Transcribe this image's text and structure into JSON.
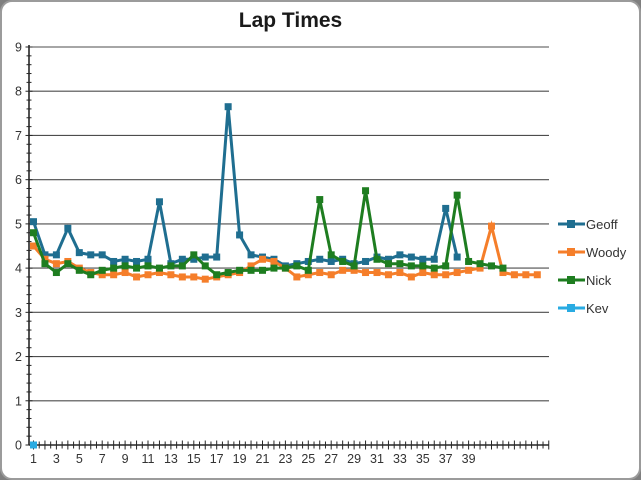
{
  "frame": {
    "outer_background": "#7f7f7f",
    "card_background": "#ffffff",
    "card_border": "#9b9b9b"
  },
  "chart_data": {
    "type": "line",
    "title": "Lap Times",
    "xlabel": "",
    "ylabel": "",
    "legend_position": "right",
    "grid": "horizontal-major",
    "marker": "square",
    "colors": {
      "axis": "#262626",
      "grid": "#4d4d4d",
      "tick_text": "#333333"
    },
    "axes": {
      "x": {
        "min": 1,
        "max": 46,
        "minor_tick_step": 0.5,
        "label_start": 1,
        "label_step": 2,
        "tick_labels": [
          "1",
          "3",
          "5",
          "7",
          "9",
          "11",
          "13",
          "15",
          "17",
          "19",
          "21",
          "23",
          "25",
          "27",
          "29",
          "31",
          "33",
          "35",
          "37",
          "39"
        ]
      },
      "y": {
        "min": 0,
        "max": 9,
        "minor_tick_step": 0.2,
        "major_step": 1,
        "tick_labels": [
          "0",
          "1",
          "2",
          "3",
          "4",
          "5",
          "6",
          "7",
          "8",
          "9"
        ]
      }
    },
    "series": [
      {
        "name": "Geoff",
        "color": "#1F6E90",
        "x_start": 1,
        "values": [
          5.05,
          4.3,
          4.3,
          4.9,
          4.35,
          4.3,
          4.3,
          4.15,
          4.2,
          4.15,
          4.2,
          5.5,
          4.1,
          4.2,
          4.2,
          4.25,
          4.25,
          7.65,
          4.75,
          4.3,
          4.25,
          4.2,
          4.05,
          4.1,
          4.15,
          4.2,
          4.15,
          4.2,
          4.1,
          4.15,
          4.25,
          4.2,
          4.3,
          4.25,
          4.2,
          4.2,
          5.35,
          4.25
        ]
      },
      {
        "name": "Woody",
        "color": "#F57E2A",
        "x_start": 1,
        "values": [
          4.5,
          4.2,
          4.1,
          4.15,
          4.0,
          3.9,
          3.85,
          3.85,
          3.9,
          3.8,
          3.85,
          3.9,
          3.85,
          3.8,
          3.8,
          3.75,
          3.8,
          3.85,
          3.9,
          4.05,
          4.2,
          4.15,
          4.0,
          3.8,
          3.85,
          3.9,
          3.85,
          3.95,
          3.95,
          3.9,
          3.9,
          3.85,
          3.9,
          3.8,
          3.9,
          3.85,
          3.85,
          3.9,
          3.95,
          4.0,
          4.95,
          3.9,
          3.85,
          3.85,
          3.85
        ]
      },
      {
        "name": "Nick",
        "color": "#1E7D20",
        "x_start": 1,
        "values": [
          4.8,
          4.1,
          3.9,
          4.1,
          3.95,
          3.85,
          3.95,
          4.0,
          4.05,
          4.0,
          4.05,
          4.0,
          4.05,
          4.05,
          4.3,
          4.05,
          3.85,
          3.9,
          3.95,
          3.95,
          3.95,
          4.0,
          4.0,
          4.05,
          3.95,
          5.55,
          4.3,
          4.15,
          4.05,
          5.75,
          4.2,
          4.1,
          4.1,
          4.05,
          4.05,
          4.0,
          4.05,
          5.65,
          4.15,
          4.1,
          4.05,
          4.0
        ]
      },
      {
        "name": "Kev",
        "color": "#29ABE2",
        "x_start": 1,
        "values": [
          0
        ]
      }
    ]
  }
}
